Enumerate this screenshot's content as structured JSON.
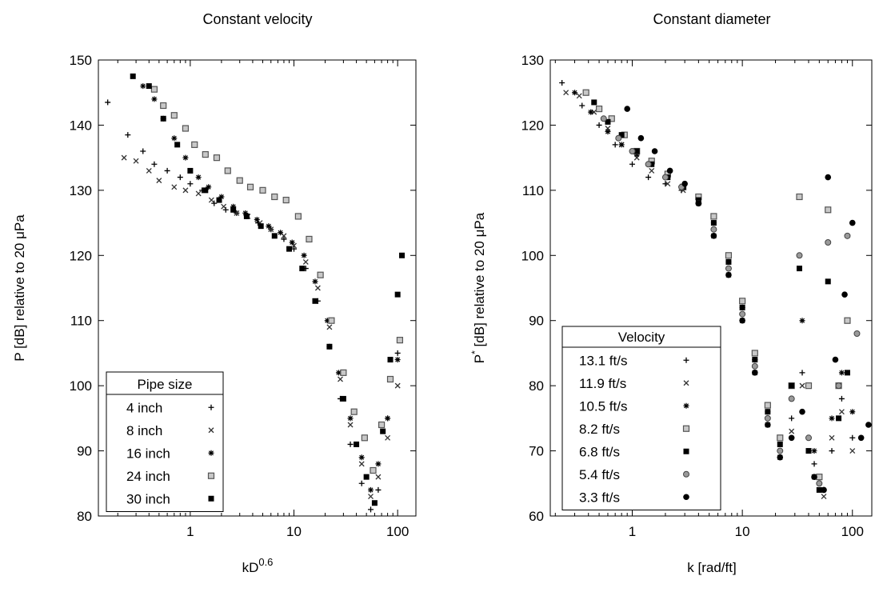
{
  "chart_data": [
    {
      "type": "scatter",
      "title": "Constant velocity",
      "xlabel": "kD",
      "xlabel_superscript": "0.6",
      "ylabel": "P [dB] relative to 20 μPa",
      "xscale": "log",
      "xlim": [
        0.13,
        150
      ],
      "ylim": [
        80,
        150
      ],
      "xtick_labels": [
        "1",
        "10",
        "100"
      ],
      "ytick_labels": [
        "80",
        "90",
        "100",
        "110",
        "120",
        "130",
        "140",
        "150"
      ],
      "legend": {
        "title": "Pipe size",
        "placement": "lower-left"
      },
      "series": [
        {
          "name": "4 inch",
          "marker": "plus",
          "x": [
            0.16,
            0.25,
            0.35,
            0.45,
            0.6,
            0.8,
            1.0,
            1.3,
            1.7,
            2.2,
            2.8,
            3.5,
            4.5,
            6,
            8,
            10,
            13,
            17,
            22,
            28,
            35,
            45,
            55,
            65,
            80,
            100
          ],
          "y": [
            143.5,
            138.5,
            136,
            134,
            133,
            132,
            131,
            130,
            128,
            127,
            126.5,
            126,
            125,
            124,
            122.5,
            121,
            118,
            113,
            106,
            98,
            91,
            85,
            81,
            84,
            95,
            105
          ]
        },
        {
          "name": "8 inch",
          "marker": "x",
          "x": [
            0.23,
            0.3,
            0.4,
            0.5,
            0.7,
            0.9,
            1.2,
            1.6,
            2.1,
            2.8,
            3.6,
            4.7,
            6,
            8,
            10,
            13,
            17,
            22,
            28,
            35,
            45,
            55,
            65,
            80,
            100
          ],
          "y": [
            135,
            134.5,
            133,
            131.5,
            130.5,
            130,
            129.5,
            128.5,
            127.5,
            126.5,
            126,
            125,
            124,
            123,
            121.5,
            119,
            115,
            109,
            101,
            94,
            88,
            83,
            86,
            92,
            100
          ]
        },
        {
          "name": "16 inch",
          "marker": "star",
          "x": [
            0.35,
            0.45,
            0.55,
            0.7,
            0.9,
            1.2,
            1.5,
            2,
            2.6,
            3.4,
            4.4,
            5.7,
            7.4,
            9.6,
            12.5,
            16,
            21,
            27,
            35,
            45,
            55,
            65,
            80,
            100
          ],
          "y": [
            146,
            144,
            141,
            138,
            135,
            132,
            130.5,
            129,
            127.5,
            126.5,
            125.5,
            124.5,
            123.5,
            122,
            120,
            116,
            110,
            102,
            95,
            89,
            84,
            88,
            95,
            104
          ]
        },
        {
          "name": "24 inch",
          "marker": "open-square",
          "x": [
            0.45,
            0.55,
            0.7,
            0.9,
            1.1,
            1.4,
            1.8,
            2.3,
            3,
            3.8,
            5,
            6.5,
            8.4,
            11,
            14,
            18,
            23,
            30,
            38,
            48,
            58,
            70,
            85,
            105
          ],
          "y": [
            145.5,
            143,
            141.5,
            139.5,
            137,
            135.5,
            135,
            133,
            131.5,
            130.5,
            130,
            129,
            128.5,
            126,
            122.5,
            117,
            110,
            102,
            96,
            92,
            87,
            94,
            101,
            107
          ]
        },
        {
          "name": "30 inch",
          "marker": "filled-square",
          "x": [
            0.28,
            0.4,
            0.55,
            0.75,
            1,
            1.4,
            1.9,
            2.6,
            3.5,
            4.8,
            6.5,
            9,
            12,
            16,
            22,
            30,
            40,
            50,
            60,
            72,
            85,
            100,
            110
          ],
          "y": [
            147.5,
            146,
            141,
            137,
            133,
            130,
            128.5,
            127,
            126,
            124.5,
            123,
            121,
            118,
            113,
            106,
            98,
            91,
            86,
            82,
            93,
            104,
            114,
            120
          ]
        }
      ]
    },
    {
      "type": "scatter",
      "title": "Constant diameter",
      "xlabel": "k [rad/ft]",
      "ylabel": "P",
      "ylabel_superscript": "*",
      "ylabel_rest": " [dB] relative to 20 μPa",
      "xscale": "log",
      "xlim": [
        0.18,
        150
      ],
      "ylim": [
        60,
        130
      ],
      "xtick_labels": [
        "1",
        "10",
        "100"
      ],
      "ytick_labels": [
        "60",
        "70",
        "80",
        "90",
        "100",
        "110",
        "120",
        "130"
      ],
      "legend": {
        "title": "Velocity",
        "placement": "lower-left"
      },
      "series": [
        {
          "name": "13.1 ft/s",
          "marker": "plus",
          "x": [
            0.23,
            0.35,
            0.5,
            0.7,
            1,
            1.4,
            2,
            2.8,
            4,
            5.5,
            7.5,
            10,
            13,
            17,
            22,
            28,
            35,
            45,
            55,
            65,
            80,
            100
          ],
          "y": [
            126.5,
            123,
            120,
            117,
            114,
            112,
            111,
            110,
            108,
            104,
            98,
            92,
            84,
            75,
            70,
            75,
            82,
            68,
            64,
            70,
            78,
            72
          ]
        },
        {
          "name": "11.9 ft/s",
          "marker": "x",
          "x": [
            0.25,
            0.33,
            0.45,
            0.6,
            0.8,
            1.1,
            1.5,
            2.1,
            2.9,
            4,
            5.5,
            7.5,
            10,
            13,
            17,
            22,
            28,
            35,
            45,
            55,
            65,
            80,
            100
          ],
          "y": [
            125,
            124.5,
            122,
            119.5,
            117,
            115,
            113,
            111,
            110,
            108,
            103,
            97,
            90,
            82,
            74,
            69,
            73,
            80,
            66,
            63,
            72,
            76,
            70
          ]
        },
        {
          "name": "10.5 ft/s",
          "marker": "star",
          "x": [
            0.3,
            0.42,
            0.6,
            0.8,
            1.1,
            1.5,
            2.1,
            2.9,
            4,
            5.5,
            7.5,
            10,
            13,
            17,
            22,
            28,
            35,
            45,
            55,
            65,
            80,
            100
          ],
          "y": [
            125,
            122,
            119,
            117,
            115.5,
            114,
            112,
            110.5,
            109,
            105,
            99,
            92,
            84,
            76,
            70,
            78,
            90,
            70,
            64,
            75,
            82,
            76
          ]
        },
        {
          "name": "8.2 ft/s",
          "marker": "open-square",
          "x": [
            0.38,
            0.5,
            0.65,
            0.85,
            1.1,
            1.5,
            2.1,
            2.9,
            4,
            5.5,
            7.5,
            10,
            13,
            17,
            22,
            28,
            33,
            40,
            50,
            60,
            75,
            90
          ],
          "y": [
            125,
            122.5,
            121,
            118.5,
            116,
            114.5,
            112.5,
            110.5,
            109,
            106,
            100,
            93,
            85,
            77,
            72,
            80,
            109,
            80,
            66,
            107,
            80,
            90
          ]
        },
        {
          "name": "6.8 ft/s",
          "marker": "filled-square",
          "x": [
            0.45,
            0.6,
            0.8,
            1.1,
            1.5,
            2.1,
            2.9,
            4,
            5.5,
            7.5,
            10,
            13,
            17,
            22,
            28,
            33,
            40,
            50,
            60,
            75,
            90
          ],
          "y": [
            123.5,
            120.5,
            118.5,
            116,
            114,
            112,
            110.5,
            108.5,
            105,
            99,
            92,
            84,
            76,
            71,
            80,
            98,
            70,
            64,
            96,
            75,
            82
          ]
        },
        {
          "name": "5.4 ft/s",
          "marker": "circle-gray",
          "x": [
            0.55,
            0.75,
            1,
            1.4,
            2,
            2.8,
            4,
            5.5,
            7.5,
            10,
            13,
            17,
            22,
            28,
            33,
            40,
            50,
            60,
            75,
            90,
            110
          ],
          "y": [
            121,
            118,
            116,
            114,
            112,
            110.5,
            108,
            104,
            98,
            91,
            83,
            75,
            70,
            78,
            100,
            72,
            65,
            102,
            80,
            103,
            88
          ]
        },
        {
          "name": "3.3 ft/s",
          "marker": "filled-circle",
          "x": [
            0.9,
            1.2,
            1.6,
            2.2,
            3,
            4,
            5.5,
            7.5,
            10,
            13,
            17,
            22,
            28,
            35,
            45,
            55,
            60,
            70,
            85,
            100,
            120,
            140
          ],
          "y": [
            122.5,
            118,
            116,
            113,
            111,
            108,
            103,
            97,
            90,
            82,
            74,
            69,
            72,
            76,
            66,
            64,
            112,
            84,
            94,
            105,
            72,
            74
          ]
        }
      ]
    }
  ]
}
